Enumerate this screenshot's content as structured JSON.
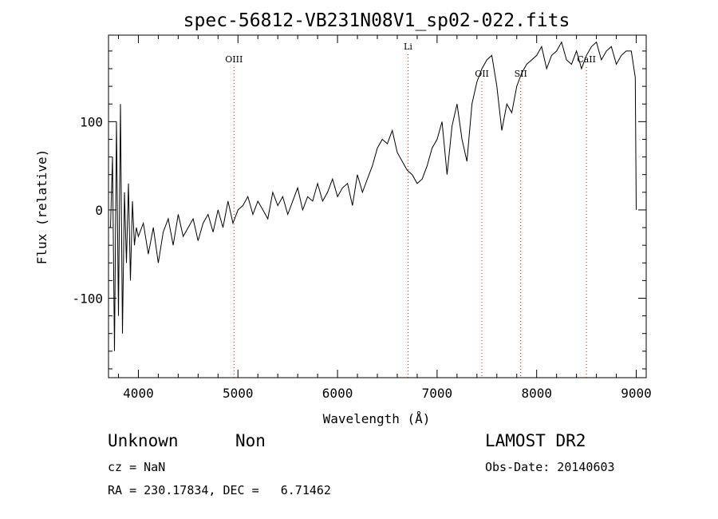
{
  "chart_data": {
    "type": "line",
    "title": "spec-56812-VB231N08V1_sp02-022.fits",
    "xlabel": "Wavelength (Å)",
    "ylabel": "Flux (relative)",
    "xlim": [
      3700,
      9100
    ],
    "ylim": [
      -190,
      198
    ],
    "x_ticks": [
      4000,
      5000,
      6000,
      7000,
      8000,
      9000
    ],
    "y_ticks": [
      -100,
      0,
      100
    ],
    "grid": false,
    "line_color": "#000000",
    "marker_color": "#ff0000",
    "spectral_lines": [
      {
        "name": "OIII",
        "wavelength": 4960
      },
      {
        "name": "Li",
        "wavelength": 6708
      },
      {
        "name": "OII",
        "wavelength": 7450
      },
      {
        "name": "SII",
        "wavelength": 7840
      },
      {
        "name": "CaII",
        "wavelength": 8500
      }
    ],
    "series": [
      {
        "x": [
          3720,
          3740,
          3760,
          3780,
          3800,
          3820,
          3840,
          3860,
          3880,
          3900,
          3920,
          3940,
          3960,
          3980,
          4000,
          4050,
          4100,
          4150,
          4200,
          4250,
          4300,
          4350,
          4400,
          4450,
          4500,
          4550,
          4600,
          4650,
          4700,
          4750,
          4800,
          4850,
          4900,
          4950,
          5000,
          5050,
          5100,
          5150,
          5200,
          5250,
          5300,
          5350,
          5400,
          5450,
          5500,
          5550,
          5600,
          5650,
          5700,
          5750,
          5800,
          5850,
          5900,
          5950,
          6000,
          6050,
          6100,
          6150,
          6200,
          6250,
          6300,
          6350,
          6400,
          6450,
          6500,
          6550,
          6600,
          6650,
          6700,
          6750,
          6800,
          6850,
          6900,
          6950,
          7000,
          7050,
          7100,
          7150,
          7200,
          7250,
          7300,
          7350,
          7400,
          7450,
          7500,
          7550,
          7600,
          7650,
          7700,
          7750,
          7800,
          7850,
          7900,
          7950,
          8000,
          8050,
          8100,
          8150,
          8200,
          8250,
          8300,
          8350,
          8400,
          8450,
          8500,
          8550,
          8600,
          8650,
          8700,
          8750,
          8800,
          8850,
          8900,
          8950,
          8990,
          9000
        ],
        "y": [
          -20,
          60,
          -160,
          100,
          -120,
          120,
          -140,
          20,
          -60,
          30,
          -80,
          10,
          -40,
          -20,
          -30,
          -15,
          -50,
          -20,
          -60,
          -25,
          -10,
          -40,
          -5,
          -30,
          -20,
          -10,
          -35,
          -15,
          -5,
          -25,
          0,
          -20,
          10,
          -15,
          0,
          5,
          15,
          -5,
          10,
          0,
          -10,
          20,
          5,
          15,
          -5,
          10,
          25,
          0,
          15,
          10,
          30,
          10,
          20,
          35,
          15,
          25,
          30,
          5,
          40,
          20,
          35,
          50,
          70,
          80,
          75,
          90,
          65,
          55,
          45,
          40,
          30,
          35,
          50,
          70,
          80,
          100,
          40,
          95,
          120,
          80,
          55,
          120,
          145,
          160,
          170,
          175,
          140,
          90,
          120,
          110,
          140,
          155,
          165,
          170,
          175,
          185,
          160,
          175,
          180,
          190,
          170,
          165,
          180,
          160,
          175,
          185,
          190,
          170,
          180,
          185,
          165,
          175,
          180,
          180,
          150,
          0
        ]
      }
    ]
  },
  "info": {
    "class": "Unknown",
    "subclass": "Non",
    "survey": "LAMOST DR2",
    "cz": "cz = NaN",
    "obs_date": "Obs-Date: 20140603",
    "coords": "RA = 230.17834, DEC =   6.71462"
  }
}
